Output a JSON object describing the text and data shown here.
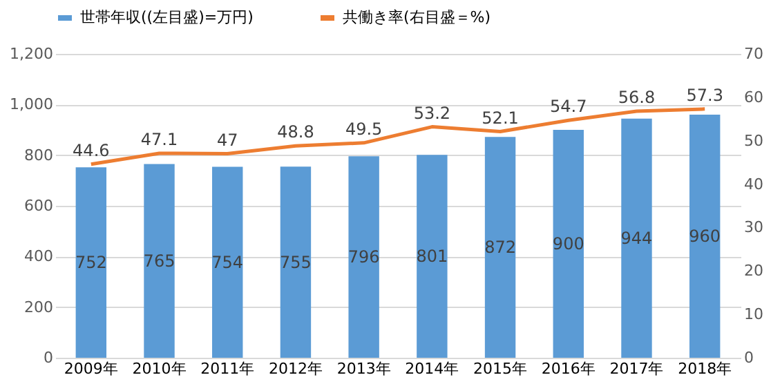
{
  "chart_data": {
    "type": "bar",
    "categories": [
      "2009年",
      "2010年",
      "2011年",
      "2012年",
      "2013年",
      "2014年",
      "2015年",
      "2016年",
      "2017年",
      "2018年"
    ],
    "series": [
      {
        "name": "世帯年収((左目盛)=万円)",
        "color": "#5b9bd5",
        "values": [
          752,
          765,
          754,
          755,
          796,
          801,
          872,
          900,
          944,
          960
        ]
      },
      {
        "name": "共働き率(右目盛＝%)",
        "type": "line",
        "axis": "y2",
        "color": "#ed7d31",
        "values": [
          44.6,
          47.1,
          47,
          48.8,
          49.5,
          53.2,
          52.1,
          54.7,
          56.8,
          57.3
        ]
      }
    ],
    "ylim": [
      0,
      1200
    ],
    "yticks": [
      0,
      {
        "value": 200,
        "label": "200"
      },
      {
        "value": 400,
        "label": "400"
      },
      {
        "value": 600,
        "label": "600"
      },
      {
        "value": 800,
        "label": "800"
      },
      {
        "value": 1000,
        "label": "1,000"
      },
      {
        "value": 1200,
        "label": "1,200"
      }
    ],
    "y2lim": [
      0,
      70
    ],
    "y2ticks": [
      0,
      10,
      20,
      30,
      40,
      50,
      60,
      70
    ],
    "grid": "y",
    "legend": "top",
    "data_labels": true,
    "marker": "none",
    "line_style": "solid"
  }
}
